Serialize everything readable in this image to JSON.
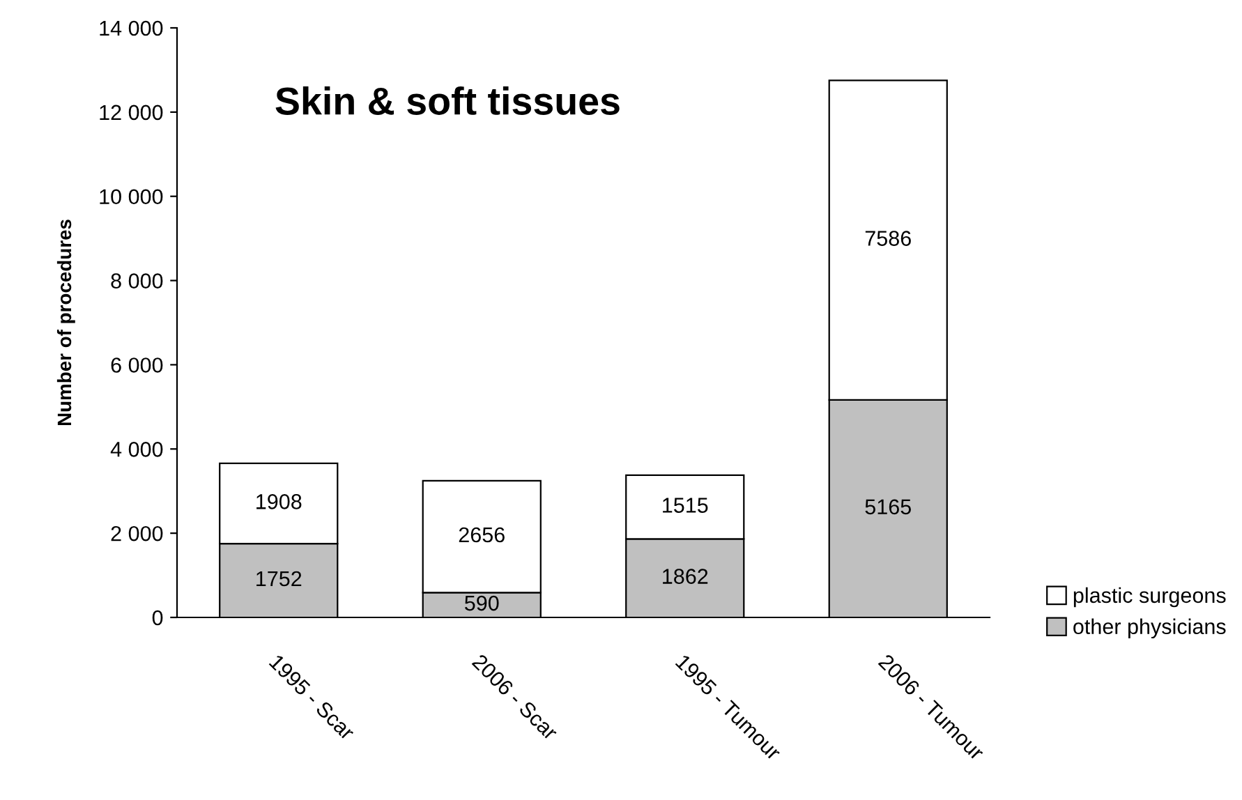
{
  "chart_data": {
    "type": "bar",
    "title": "Skin & soft tissues",
    "ylabel": "Number of procedures",
    "categories": [
      "1995 - Scar",
      "2006 - Scar",
      "1995 - Tumour",
      "2006 - Tumour"
    ],
    "stacked": true,
    "data_labels": true,
    "legend": "bottom right",
    "grid": false,
    "ylim": [
      0,
      14000
    ],
    "yticks": [
      {
        "value": 0,
        "label": "0"
      },
      {
        "value": 2000,
        "label": "2 000"
      },
      {
        "value": 4000,
        "label": "4 000"
      },
      {
        "value": 6000,
        "label": "6 000"
      },
      {
        "value": 8000,
        "label": "8 000"
      },
      {
        "value": 10000,
        "label": "10 000"
      },
      {
        "value": 12000,
        "label": "12 000"
      },
      {
        "value": 14000,
        "label": "14 000"
      }
    ],
    "series": [
      {
        "name": "other physicians",
        "color": "#c0c0c0",
        "values": [
          1752,
          590,
          1862,
          5165
        ]
      },
      {
        "name": "plastic surgeons",
        "color": "#ffffff",
        "values": [
          1908,
          2656,
          1515,
          7586
        ]
      }
    ]
  }
}
